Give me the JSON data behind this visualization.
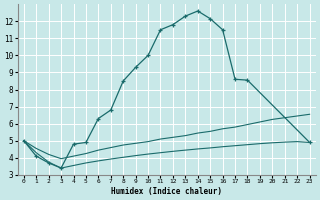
{
  "xlabel": "Humidex (Indice chaleur)",
  "bg_color": "#c8e8e8",
  "line_color": "#1a6b6b",
  "grid_color": "#ffffff",
  "xlim": [
    -0.5,
    23.5
  ],
  "ylim": [
    3,
    13
  ],
  "yticks": [
    3,
    4,
    5,
    6,
    7,
    8,
    9,
    10,
    11,
    12
  ],
  "xticks": [
    0,
    1,
    2,
    3,
    4,
    5,
    6,
    7,
    8,
    9,
    10,
    11,
    12,
    13,
    14,
    15,
    16,
    17,
    18,
    19,
    20,
    21,
    22,
    23
  ],
  "line1_x": [
    0,
    1,
    2,
    3,
    4,
    5,
    6,
    7,
    8,
    9,
    10,
    11,
    12,
    13,
    14,
    15,
    16,
    17,
    18,
    23
  ],
  "line1_y": [
    5.0,
    4.1,
    3.7,
    3.4,
    4.8,
    4.9,
    6.3,
    6.8,
    8.5,
    9.3,
    10.0,
    11.5,
    11.8,
    12.3,
    12.6,
    12.15,
    11.5,
    8.6,
    8.55,
    4.9
  ],
  "line2_x": [
    0,
    1,
    2,
    3,
    4,
    5,
    6,
    7,
    8,
    9,
    10,
    11,
    12,
    13,
    14,
    15,
    16,
    17,
    18,
    19,
    20,
    21,
    22,
    23
  ],
  "line2_y": [
    5.0,
    4.55,
    4.2,
    3.95,
    4.1,
    4.25,
    4.45,
    4.6,
    4.75,
    4.85,
    4.95,
    5.1,
    5.2,
    5.3,
    5.45,
    5.55,
    5.7,
    5.8,
    5.95,
    6.1,
    6.25,
    6.35,
    6.45,
    6.55
  ],
  "line3_x": [
    0,
    1,
    2,
    3,
    4,
    5,
    6,
    7,
    8,
    9,
    10,
    11,
    12,
    13,
    14,
    15,
    16,
    17,
    18,
    19,
    20,
    21,
    22,
    23
  ],
  "line3_y": [
    5.0,
    4.3,
    3.75,
    3.4,
    3.55,
    3.7,
    3.82,
    3.93,
    4.03,
    4.13,
    4.22,
    4.3,
    4.38,
    4.45,
    4.52,
    4.58,
    4.65,
    4.71,
    4.77,
    4.83,
    4.88,
    4.92,
    4.95,
    4.9
  ]
}
